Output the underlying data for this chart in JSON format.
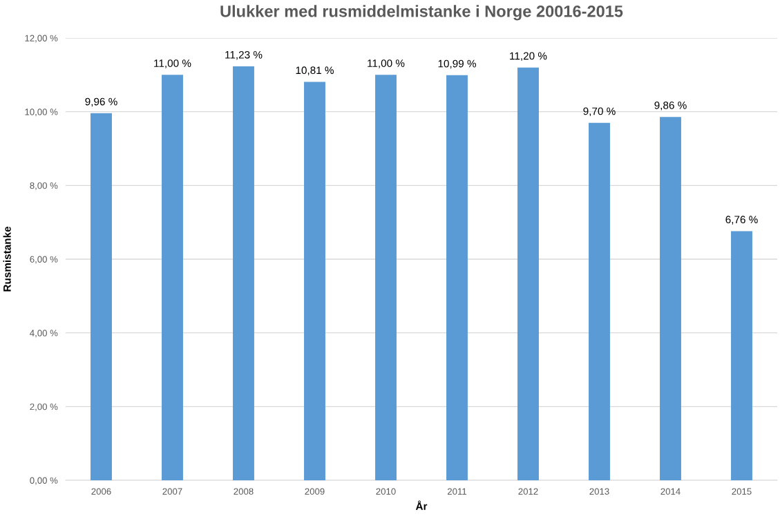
{
  "chart_data": {
    "type": "bar",
    "title": "Ulukker med rusmiddelmistanke i Norge 20016-2015",
    "xlabel": "År",
    "ylabel": "Rusmistanke",
    "categories": [
      "2006",
      "2007",
      "2008",
      "2009",
      "2010",
      "2011",
      "2012",
      "2013",
      "2014",
      "2015"
    ],
    "values": [
      9.96,
      11.0,
      11.23,
      10.81,
      11.0,
      10.99,
      11.2,
      9.7,
      9.86,
      6.76
    ],
    "value_labels": [
      "9,96 %",
      "11,00 %",
      "11,23 %",
      "10,81 %",
      "11,00 %",
      "10,99 %",
      "11,20 %",
      "9,70 %",
      "9,86 %",
      "6,76 %"
    ],
    "color": "#5b9bd5",
    "ylim": [
      0,
      12
    ],
    "yticks": [
      {
        "value": 0,
        "label": "0,00 %"
      },
      {
        "value": 2,
        "label": "2,00 %"
      },
      {
        "value": 4,
        "label": "4,00 %"
      },
      {
        "value": 6,
        "label": "6,00 %"
      },
      {
        "value": 8,
        "label": "8,00 %"
      },
      {
        "value": 10,
        "label": "10,00 %"
      },
      {
        "value": 12,
        "label": "12,00 %"
      }
    ],
    "grid": "y",
    "legend": false
  }
}
